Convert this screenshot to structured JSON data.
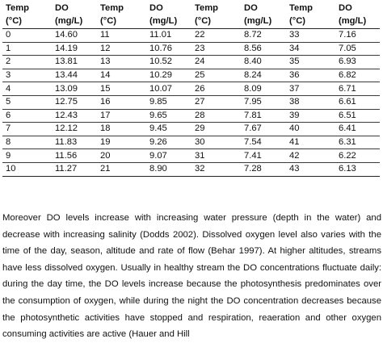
{
  "table": {
    "header_top": [
      "Temp",
      "DO",
      "Temp",
      "DO",
      "Temp",
      "DO",
      "Temp",
      "DO"
    ],
    "header_units": [
      "(°C)",
      "(mg/L)",
      "(°C)",
      "(mg/L)",
      "(°C)",
      "(mg/L)",
      "(°C)",
      "(mg/L)"
    ],
    "rows": [
      [
        "0",
        "14.60",
        "11",
        "11.01",
        "22",
        "8.72",
        "33",
        "7.16"
      ],
      [
        "1",
        "14.19",
        "12",
        "10.76",
        "23",
        "8.56",
        "34",
        "7.05"
      ],
      [
        "2",
        "13.81",
        "13",
        "10.52",
        "24",
        "8.40",
        "35",
        "6.93"
      ],
      [
        "3",
        "13.44",
        "14",
        "10.29",
        "25",
        "8.24",
        "36",
        "6.82"
      ],
      [
        "4",
        "13.09",
        "15",
        "10.07",
        "26",
        "8.09",
        "37",
        "6.71"
      ],
      [
        "5",
        "12.75",
        "16",
        "9.85",
        "27",
        "7.95",
        "38",
        "6.61"
      ],
      [
        "6",
        "12.43",
        "17",
        "9.65",
        "28",
        "7.81",
        "39",
        "6.51"
      ],
      [
        "7",
        "12.12",
        "18",
        "9.45",
        "29",
        "7.67",
        "40",
        "6.41"
      ],
      [
        "8",
        "11.83",
        "19",
        "9.26",
        "30",
        "7.54",
        "41",
        "6.31"
      ],
      [
        "9",
        "11.56",
        "20",
        "9.07",
        "31",
        "7.41",
        "42",
        "6.22"
      ],
      [
        "10",
        "11.27",
        "21",
        "8.90",
        "32",
        "7.28",
        "43",
        "6.13"
      ]
    ]
  },
  "paragraph": "Moreover DO levels increase with increasing water pressure (depth in the water) and decrease with increasing salinity (Dodds 2002). Dissolved oxygen level also varies with the time of the day, season, altitude and rate of flow (Behar 1997). At higher altitudes, streams have less dissolved oxygen. Usually in healthy stream the DO concentrations fluctuate daily: during the day time, the DO levels increase because the photosynthesis predominates over the consumption of oxygen, while during the night the DO concentration decreases because the photosynthetic activities have stopped and respiration, reaeration and other oxygen consuming activities are active (Hauer and Hill"
}
